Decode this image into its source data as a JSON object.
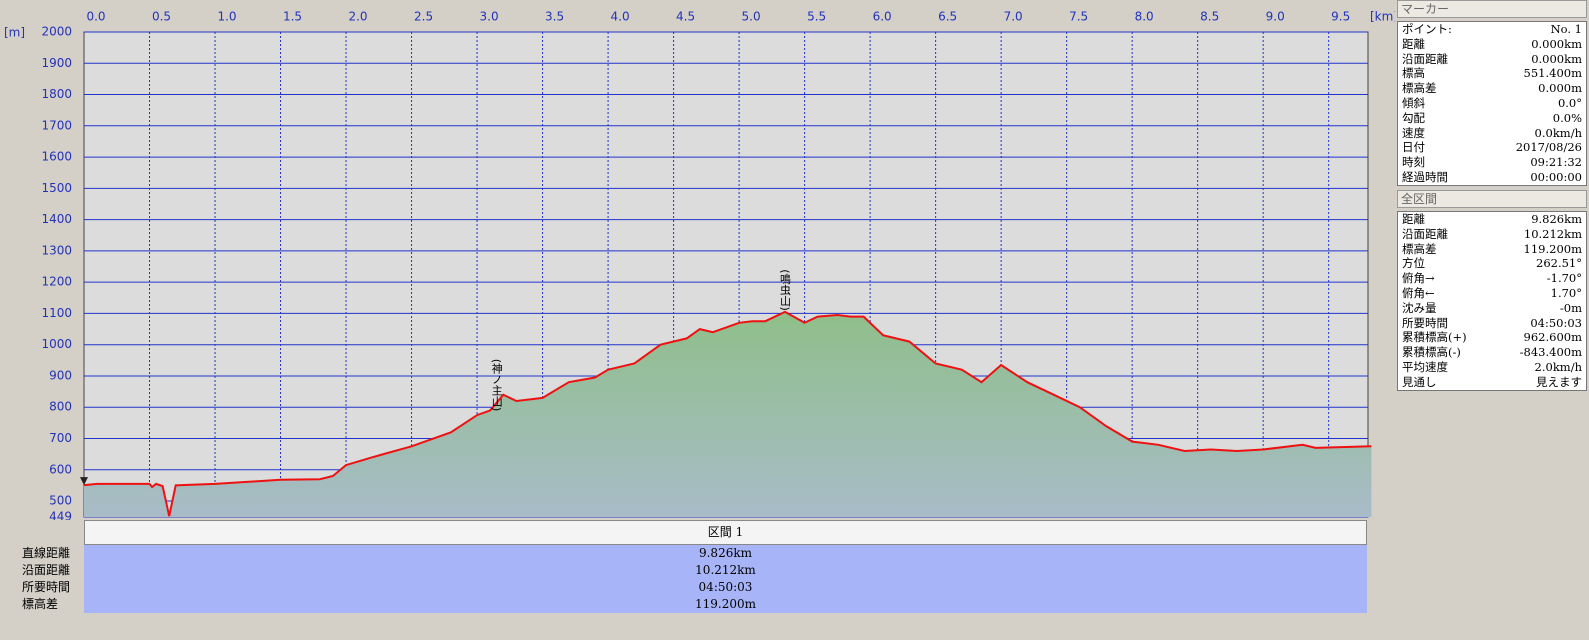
{
  "chart_data": {
    "type": "area",
    "x_unit": "[km]",
    "y_unit": "[m]",
    "x": [
      0.0,
      0.1,
      0.5,
      0.52,
      0.55,
      0.6,
      0.65,
      0.7,
      1.0,
      1.5,
      1.8,
      1.9,
      2.0,
      2.2,
      2.5,
      2.8,
      3.0,
      3.1,
      3.2,
      3.3,
      3.5,
      3.7,
      3.9,
      4.0,
      4.2,
      4.4,
      4.6,
      4.7,
      4.8,
      5.0,
      5.1,
      5.2,
      5.35,
      5.5,
      5.6,
      5.75,
      5.85,
      5.95,
      6.1,
      6.3,
      6.5,
      6.7,
      6.85,
      7.0,
      7.2,
      7.4,
      7.6,
      7.8,
      8.0,
      8.2,
      8.4,
      8.6,
      8.8,
      9.0,
      9.3,
      9.4,
      9.826
    ],
    "values": [
      551,
      555,
      555,
      545,
      555,
      548,
      452,
      550,
      555,
      568,
      570,
      580,
      615,
      640,
      675,
      720,
      775,
      790,
      840,
      820,
      830,
      880,
      895,
      920,
      940,
      1000,
      1020,
      1050,
      1040,
      1070,
      1075,
      1075,
      1105,
      1070,
      1090,
      1095,
      1090,
      1090,
      1030,
      1010,
      940,
      920,
      880,
      935,
      880,
      840,
      800,
      740,
      690,
      680,
      660,
      665,
      660,
      665,
      680,
      670,
      675
    ],
    "line_color": "#ee1111",
    "area_color": "#8fbf8a",
    "annotations": [
      "(神ノ主山)",
      "(鳴虫山)"
    ],
    "xlim": [
      0,
      9.8
    ],
    "ylim": [
      449,
      2000
    ],
    "xticks": [
      {
        "value": 0,
        "label": "0.0"
      },
      {
        "value": 0.5,
        "label": "0.5"
      },
      {
        "value": 1,
        "label": "1.0"
      },
      {
        "value": 1.5,
        "label": "1.5"
      },
      {
        "value": 2,
        "label": "2.0"
      },
      {
        "value": 2.5,
        "label": "2.5"
      },
      {
        "value": 3,
        "label": "3.0"
      },
      {
        "value": 3.5,
        "label": "3.5"
      },
      {
        "value": 4,
        "label": "4.0"
      },
      {
        "value": 4.5,
        "label": "4.5"
      },
      {
        "value": 5,
        "label": "5.0"
      },
      {
        "value": 5.5,
        "label": "5.5"
      },
      {
        "value": 6,
        "label": "6.0"
      },
      {
        "value": 6.5,
        "label": "6.5"
      },
      {
        "value": 7,
        "label": "7.0"
      },
      {
        "value": 7.5,
        "label": "7.5"
      },
      {
        "value": 8,
        "label": "8.0"
      },
      {
        "value": 8.5,
        "label": "8.5"
      },
      {
        "value": 9,
        "label": "9.0"
      },
      {
        "value": 9.5,
        "label": "9.5"
      }
    ],
    "yticks": [
      449,
      500,
      600,
      700,
      800,
      900,
      1000,
      1100,
      1200,
      1300,
      1400,
      1500,
      1600,
      1700,
      1800,
      1900,
      2000
    ],
    "grid": true
  },
  "marker": {
    "title": "マーカー",
    "rows": [
      [
        "ポイント:",
        "No. 1"
      ],
      [
        "距離",
        "0.000km"
      ],
      [
        "沿面距離",
        "0.000km"
      ],
      [
        "標高",
        "551.400m"
      ],
      [
        "標高差",
        "0.000m"
      ],
      [
        "傾斜",
        "0.0°"
      ],
      [
        "勾配",
        "0.0%"
      ],
      [
        "速度",
        "0.0km/h"
      ],
      [
        "日付",
        "2017/08/26"
      ],
      [
        "時刻",
        "09:21:32"
      ],
      [
        "経過時間",
        "00:00:00"
      ]
    ]
  },
  "total": {
    "title": "全区間",
    "rows": [
      [
        "距離",
        "9.826km"
      ],
      [
        "沿面距離",
        "10.212km"
      ],
      [
        "標高差",
        "119.200m"
      ],
      [
        "方位",
        "262.51°"
      ],
      [
        "俯角→",
        "-1.70°"
      ],
      [
        "俯角←",
        "1.70°"
      ],
      [
        "沈み量",
        "-0m"
      ],
      [
        "所要時間",
        "04:50:03"
      ],
      [
        "累積標高(+)",
        "962.600m"
      ],
      [
        "累積標高(-)",
        "-843.400m"
      ],
      [
        "平均速度",
        "2.0km/h"
      ],
      [
        "見通し",
        "見えます"
      ]
    ]
  },
  "section": {
    "title": "区間 1",
    "labels": [
      "直線距離",
      "沿面距離",
      "所要時間",
      "標高差"
    ],
    "values": [
      "9.826km",
      "10.212km",
      "04:50:03",
      "119.200m"
    ]
  }
}
